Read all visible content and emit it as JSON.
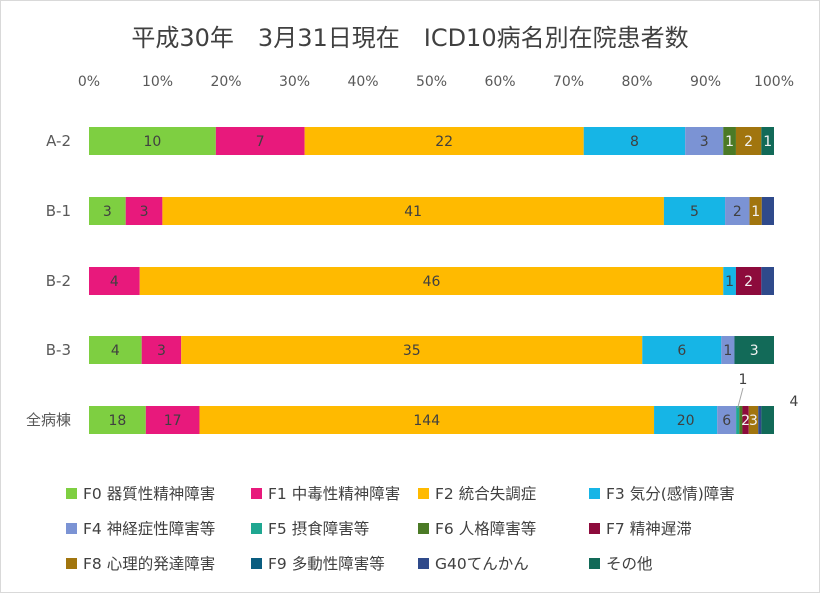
{
  "chart_data": {
    "type": "bar",
    "orientation": "horizontal",
    "stacked": "percent",
    "title": "平成30年　3月31日現在　ICD10病名別在院患者数",
    "categories": [
      "A-2",
      "B-1",
      "B-2",
      "B-3",
      "全病棟"
    ],
    "x_ticks": [
      "0%",
      "10%",
      "20%",
      "30%",
      "40%",
      "50%",
      "60%",
      "70%",
      "80%",
      "90%",
      "100%"
    ],
    "xlim": [
      0,
      100
    ],
    "grid": false,
    "legend_position": "bottom",
    "series": [
      {
        "name": "F0 器質性精神障害",
        "color": "#7ecf41",
        "values": [
          10,
          3,
          0,
          4,
          18
        ],
        "labels": [
          "10",
          "3",
          "",
          "4",
          "18"
        ]
      },
      {
        "name": "F1 中毒性精神障害",
        "color": "#e8197c",
        "values": [
          7,
          3,
          4,
          3,
          17
        ],
        "labels": [
          "7",
          "3",
          "4",
          "3",
          "17"
        ]
      },
      {
        "name": "F2 統合失調症",
        "color": "#ffba00",
        "values": [
          22,
          41,
          46,
          35,
          144
        ],
        "labels": [
          "22",
          "41",
          "46",
          "35",
          "144"
        ]
      },
      {
        "name": "F3 気分(感情)障害",
        "color": "#16b5e6",
        "values": [
          8,
          5,
          1,
          6,
          20
        ],
        "labels": [
          "8",
          "5",
          "1",
          "6",
          "20"
        ]
      },
      {
        "name": "F4 神経症性障害等",
        "color": "#7b93d4",
        "values": [
          3,
          2,
          0,
          1,
          6
        ],
        "labels": [
          "3",
          "2",
          "",
          "1",
          "6"
        ]
      },
      {
        "name": "F5 摂食障害等",
        "color": "#1fa791",
        "values": [
          0,
          0,
          0,
          0,
          1
        ],
        "labels": [
          "",
          "",
          "",
          "",
          "1"
        ]
      },
      {
        "name": "F6 人格障害等",
        "color": "#4b7a26",
        "values": [
          1,
          0,
          0,
          0,
          1
        ],
        "labels": [
          "1",
          "",
          "",
          "",
          ""
        ]
      },
      {
        "name": "F7 精神遅滞",
        "color": "#8d0b3c",
        "values": [
          0,
          0,
          2,
          0,
          2
        ],
        "labels": [
          "",
          "",
          "2",
          "",
          "2"
        ]
      },
      {
        "name": "F8 心理的発達障害",
        "color": "#a1750e",
        "values": [
          2,
          1,
          0,
          0,
          3
        ],
        "labels": [
          "2",
          "1",
          "",
          "",
          "3"
        ]
      },
      {
        "name": "F9 多動性障害等",
        "color": "#0a5d80",
        "values": [
          0,
          0,
          0,
          0,
          0
        ],
        "labels": [
          "",
          "",
          "",
          "",
          ""
        ]
      },
      {
        "name": "G40てんかん",
        "color": "#2f4a8b",
        "values": [
          0,
          1,
          1,
          0,
          1
        ],
        "labels": [
          "",
          "",
          "",
          "",
          ""
        ]
      },
      {
        "name": "その他",
        "color": "#126a58",
        "values": [
          1,
          0,
          0,
          3,
          4
        ],
        "labels": [
          "1",
          "",
          "",
          "3",
          "4"
        ]
      }
    ]
  }
}
